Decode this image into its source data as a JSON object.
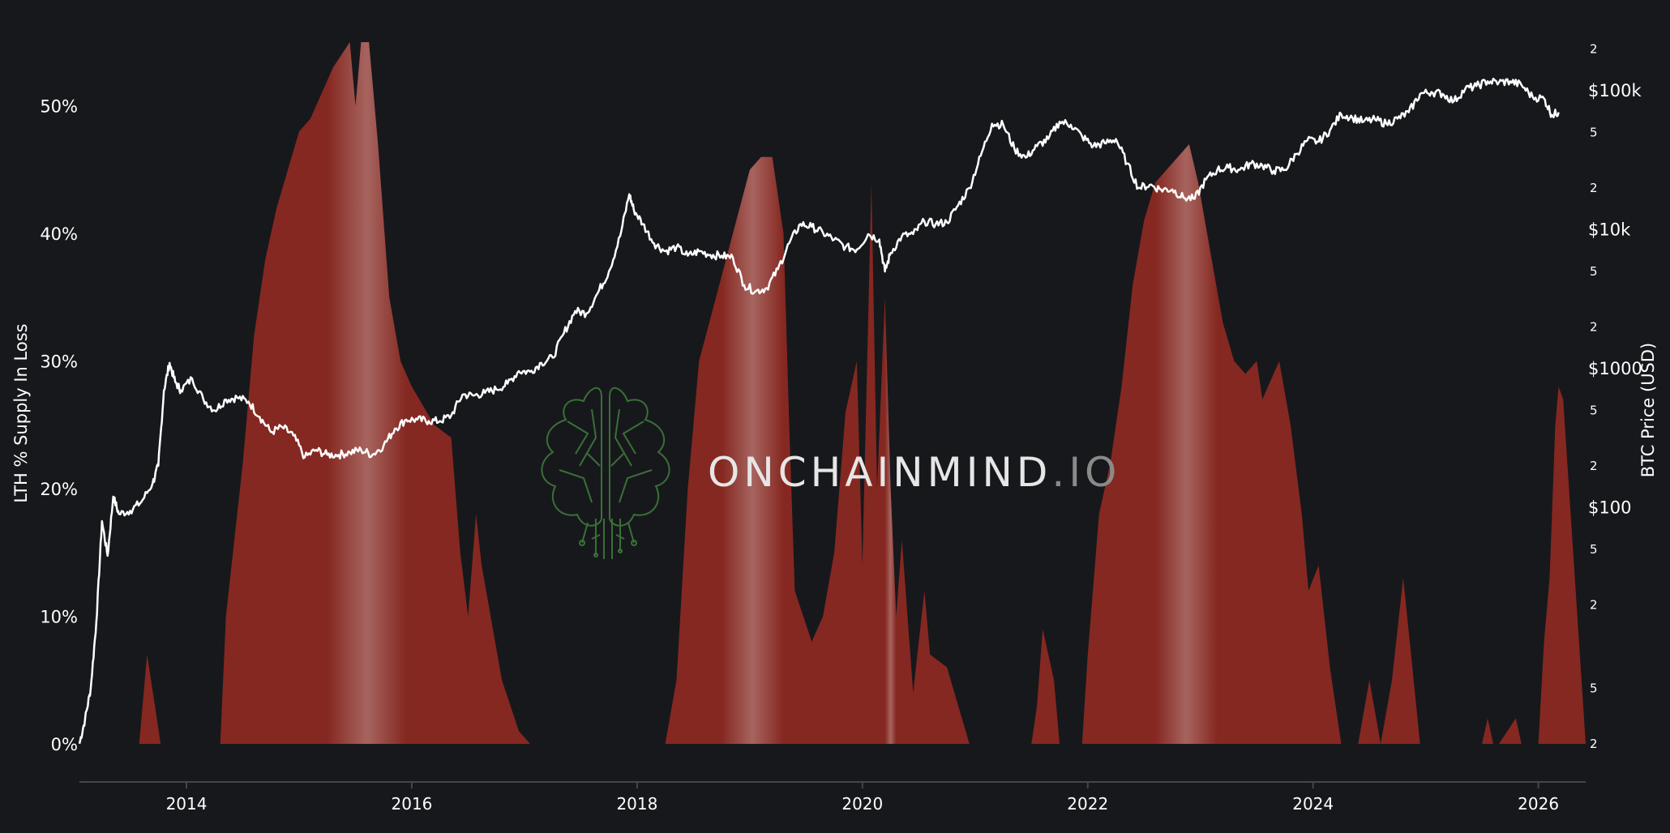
{
  "chart_data": {
    "type": "area",
    "title": "",
    "ylabel_left": "LTH % Supply In Loss",
    "ylabel_right": "BTC Price (USD)",
    "xlim": [
      2013.05,
      2026.42
    ],
    "ylim_left": [
      0,
      55
    ],
    "ylim_right_log10": [
      0.3,
      5.35
    ],
    "right_scale": "log",
    "grid": false,
    "legend": "none",
    "x_ticks": [
      "2014",
      "2016",
      "2018",
      "2020",
      "2022",
      "2024",
      "2026"
    ],
    "y_left_ticks": [
      "0%",
      "10%",
      "20%",
      "30%",
      "40%",
      "50%"
    ],
    "y_right_major_ticks": [
      {
        "label": "$100",
        "value": 100
      },
      {
        "label": "$1000",
        "value": 1000
      },
      {
        "label": "$10k",
        "value": 10000
      },
      {
        "label": "$100k",
        "value": 100000
      }
    ],
    "y_right_minor_ticks": [
      {
        "label": "2",
        "value": 2
      },
      {
        "label": "5",
        "value": 5
      },
      {
        "label": "2",
        "value": 20
      },
      {
        "label": "5",
        "value": 50
      },
      {
        "label": "2",
        "value": 200
      },
      {
        "label": "5",
        "value": 500
      },
      {
        "label": "2",
        "value": 2000
      },
      {
        "label": "5",
        "value": 5000
      },
      {
        "label": "2",
        "value": 20000
      },
      {
        "label": "5",
        "value": 50000
      },
      {
        "label": "2",
        "value": 200000
      }
    ],
    "series": [
      {
        "name": "LTH % Supply In Loss",
        "color": "#8f2a22",
        "x": [
          2013.05,
          2013.58,
          2013.65,
          2013.72,
          2013.77,
          2013.83,
          2013.9,
          2014.3,
          2014.35,
          2014.5,
          2014.6,
          2014.7,
          2014.8,
          2014.9,
          2015.0,
          2015.1,
          2015.3,
          2015.45,
          2015.5,
          2015.55,
          2015.62,
          2015.7,
          2015.75,
          2015.8,
          2015.9,
          2016.0,
          2016.2,
          2016.35,
          2016.43,
          2016.5,
          2016.57,
          2016.62,
          2016.7,
          2016.8,
          2016.95,
          2017.05,
          2017.2,
          2017.3,
          2017.5,
          2017.8,
          2018.25,
          2018.35,
          2018.45,
          2018.55,
          2018.7,
          2018.85,
          2019.0,
          2019.1,
          2019.2,
          2019.3,
          2019.35,
          2019.4,
          2019.55,
          2019.65,
          2019.75,
          2019.85,
          2019.95,
          2020.0,
          2020.08,
          2020.13,
          2020.2,
          2020.25,
          2020.3,
          2020.35,
          2020.45,
          2020.55,
          2020.6,
          2020.75,
          2020.85,
          2020.95,
          2021.0,
          2021.5,
          2021.55,
          2021.6,
          2021.7,
          2021.75,
          2021.85,
          2021.95,
          2022.0,
          2022.1,
          2022.2,
          2022.3,
          2022.4,
          2022.5,
          2022.6,
          2022.7,
          2022.8,
          2022.9,
          2022.98,
          2023.1,
          2023.2,
          2023.3,
          2023.4,
          2023.5,
          2023.55,
          2023.6,
          2023.7,
          2023.8,
          2023.9,
          2023.96,
          2024.05,
          2024.15,
          2024.25,
          2024.33,
          2024.4,
          2024.5,
          2024.6,
          2024.7,
          2024.8,
          2024.87,
          2024.95,
          2025.3,
          2025.5,
          2025.55,
          2025.6,
          2025.65,
          2025.8,
          2025.85,
          2025.9,
          2025.95,
          2026.0,
          2026.05,
          2026.1,
          2026.15,
          2026.18,
          2026.22,
          2026.42
        ],
        "values": [
          0,
          0,
          7,
          3,
          0,
          0,
          0,
          0,
          10,
          22,
          32,
          38,
          42,
          45,
          48,
          49,
          53,
          55,
          50,
          55,
          55,
          47,
          41,
          35,
          30,
          28,
          25,
          24,
          15,
          10,
          18,
          14,
          10,
          5,
          1,
          0,
          0,
          0,
          0,
          0,
          0,
          5,
          20,
          30,
          35,
          40,
          45,
          46,
          46,
          40,
          25,
          12,
          8,
          10,
          15,
          26,
          30,
          14,
          44,
          20,
          35,
          20,
          10,
          16,
          4,
          12,
          7,
          6,
          3,
          0,
          0,
          0,
          3,
          9,
          5,
          0,
          0,
          0,
          7,
          18,
          22,
          28,
          36,
          41,
          44,
          45,
          46,
          47,
          44,
          38,
          33,
          30,
          29,
          30,
          27,
          28,
          30,
          25,
          18,
          12,
          14,
          6,
          0,
          0,
          0,
          5,
          0,
          5,
          13,
          7,
          0,
          0,
          0,
          2,
          0,
          0,
          2,
          0,
          0,
          0,
          0,
          8,
          13,
          25,
          28,
          27,
          0
        ]
      },
      {
        "name": "BTC Price (USD)",
        "color": "#ffffff",
        "x": [
          2013.05,
          2013.1,
          2013.15,
          2013.2,
          2013.25,
          2013.3,
          2013.35,
          2013.4,
          2013.5,
          2013.6,
          2013.7,
          2013.75,
          2013.8,
          2013.85,
          2013.9,
          2013.95,
          2014.05,
          2014.15,
          2014.25,
          2014.35,
          2014.45,
          2014.55,
          2014.65,
          2014.75,
          2014.85,
          2014.95,
          2015.05,
          2015.15,
          2015.25,
          2015.35,
          2015.45,
          2015.55,
          2015.65,
          2015.75,
          2015.85,
          2015.95,
          2016.05,
          2016.15,
          2016.25,
          2016.35,
          2016.45,
          2016.55,
          2016.65,
          2016.75,
          2016.85,
          2016.95,
          2017.05,
          2017.15,
          2017.25,
          2017.35,
          2017.45,
          2017.55,
          2017.65,
          2017.75,
          2017.85,
          2017.93,
          2017.97,
          2018.05,
          2018.15,
          2018.25,
          2018.35,
          2018.45,
          2018.55,
          2018.65,
          2018.75,
          2018.85,
          2018.95,
          2019.05,
          2019.15,
          2019.25,
          2019.35,
          2019.45,
          2019.55,
          2019.65,
          2019.75,
          2019.85,
          2019.95,
          2020.05,
          2020.15,
          2020.2,
          2020.25,
          2020.35,
          2020.45,
          2020.55,
          2020.65,
          2020.75,
          2020.85,
          2020.95,
          2021.05,
          2021.15,
          2021.25,
          2021.35,
          2021.45,
          2021.55,
          2021.65,
          2021.75,
          2021.85,
          2021.95,
          2022.05,
          2022.15,
          2022.25,
          2022.35,
          2022.45,
          2022.55,
          2022.65,
          2022.75,
          2022.85,
          2022.95,
          2023.05,
          2023.15,
          2023.25,
          2023.35,
          2023.45,
          2023.55,
          2023.65,
          2023.75,
          2023.85,
          2023.95,
          2024.05,
          2024.15,
          2024.25,
          2024.35,
          2024.45,
          2024.55,
          2024.65,
          2024.75,
          2024.85,
          2024.95,
          2025.05,
          2025.15,
          2025.25,
          2025.35,
          2025.45,
          2025.55,
          2025.65,
          2025.75,
          2025.85,
          2025.95,
          2026.05,
          2026.12,
          2026.18
        ],
        "values": [
          2,
          3,
          5,
          15,
          80,
          45,
          120,
          90,
          95,
          110,
          150,
          200,
          700,
          1100,
          800,
          700,
          850,
          600,
          500,
          600,
          620,
          580,
          450,
          350,
          380,
          330,
          230,
          260,
          240,
          240,
          250,
          260,
          240,
          280,
          370,
          430,
          430,
          420,
          420,
          460,
          650,
          640,
          670,
          710,
          780,
          960,
          950,
          1100,
          1200,
          1800,
          2600,
          2500,
          3500,
          5000,
          9000,
          18000,
          14000,
          11000,
          8000,
          7000,
          7500,
          6500,
          7000,
          6600,
          6500,
          6300,
          4000,
          3600,
          3800,
          5200,
          8000,
          11000,
          10500,
          9500,
          8500,
          7500,
          7200,
          9300,
          8500,
          5000,
          6800,
          9000,
          9300,
          11500,
          11000,
          11300,
          15000,
          20000,
          34000,
          58000,
          57000,
          38000,
          33000,
          40000,
          45000,
          60000,
          57000,
          47000,
          40000,
          42000,
          45000,
          30000,
          20000,
          21000,
          19500,
          19500,
          17000,
          16700,
          23000,
          27000,
          28000,
          27000,
          30000,
          29000,
          26500,
          27000,
          35000,
          44000,
          43000,
          52000,
          68000,
          64000,
          60000,
          62000,
          58000,
          63000,
          70000,
          95000,
          98000,
          95000,
          84000,
          103000,
          108000,
          117000,
          115000,
          117000,
          110000,
          90000,
          88000,
          67000,
          70000
        ]
      }
    ]
  },
  "watermark": {
    "brand_main": "ONCHAINMIND",
    "brand_suffix": ".IO",
    "logo_icon": "brain-circuit-icon",
    "brand_color": "#e6e6e6",
    "suffix_color": "#8a8a8a",
    "logo_color": "#3d7a3a"
  },
  "colors": {
    "background": "#17181c",
    "area_fill": "#8f2a22",
    "price_line": "#ffffff",
    "axis": "#444650"
  }
}
